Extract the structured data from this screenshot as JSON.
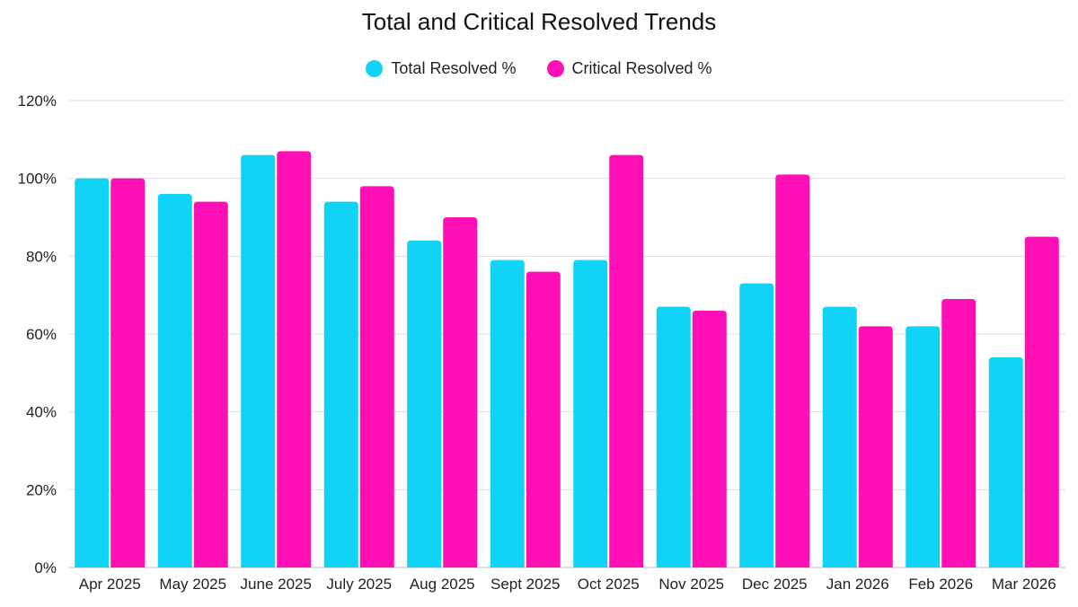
{
  "chart_data": {
    "type": "bar",
    "title": "Total and Critical Resolved Trends",
    "categories": [
      "Apr 2025",
      "May 2025",
      "June 2025",
      "July 2025",
      "Aug 2025",
      "Sept 2025",
      "Oct 2025",
      "Nov 2025",
      "Dec 2025",
      "Jan 2026",
      "Feb 2026",
      "Mar 2026"
    ],
    "series": [
      {
        "name": "Total Resolved %",
        "color": "#0fd4f5",
        "values": [
          100,
          96,
          106,
          94,
          84,
          79,
          79,
          67,
          73,
          67,
          62,
          54
        ]
      },
      {
        "name": "Critical Resolved %",
        "color": "#ff0fb4",
        "values": [
          100,
          94,
          107,
          98,
          90,
          76,
          106,
          66,
          101,
          62,
          69,
          85
        ]
      }
    ],
    "ylim": [
      0,
      120
    ],
    "yticks": [
      "0%",
      "20%",
      "40%",
      "60%",
      "80%",
      "100%",
      "120%"
    ],
    "xlabel": "",
    "ylabel": "",
    "grid": true,
    "legend_position": "top-center"
  }
}
